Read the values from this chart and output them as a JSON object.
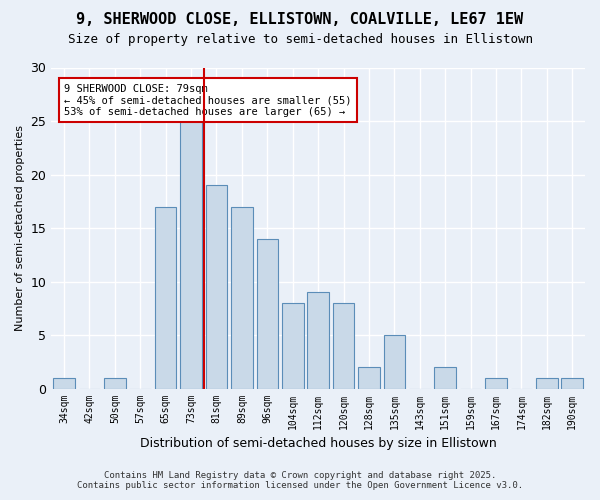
{
  "title": "9, SHERWOOD CLOSE, ELLISTOWN, COALVILLE, LE67 1EW",
  "subtitle": "Size of property relative to semi-detached houses in Ellistown",
  "xlabel": "Distribution of semi-detached houses by size in Ellistown",
  "ylabel": "Number of semi-detached properties",
  "bar_color": "#c9d9e8",
  "bar_edge_color": "#5b8db8",
  "categories": [
    "34sqm",
    "42sqm",
    "50sqm",
    "57sqm",
    "65sqm",
    "73sqm",
    "81sqm",
    "89sqm",
    "96sqm",
    "104sqm",
    "112sqm",
    "120sqm",
    "128sqm",
    "135sqm",
    "143sqm",
    "151sqm",
    "159sqm",
    "167sqm",
    "174sqm",
    "182sqm",
    "190sqm"
  ],
  "values": [
    1,
    0,
    1,
    0,
    17,
    25,
    19,
    17,
    14,
    8,
    9,
    8,
    2,
    5,
    0,
    2,
    0,
    1,
    0,
    1,
    1
  ],
  "ylim": [
    0,
    30
  ],
  "yticks": [
    0,
    5,
    10,
    15,
    20,
    25,
    30
  ],
  "annotation_text": "9 SHERWOOD CLOSE: 79sqm\n← 45% of semi-detached houses are smaller (55)\n53% of semi-detached houses are larger (65) →",
  "footer_line1": "Contains HM Land Registry data © Crown copyright and database right 2025.",
  "footer_line2": "Contains public sector information licensed under the Open Government Licence v3.0.",
  "bg_color": "#eaf0f8",
  "plot_bg_color": "#eaf0f8",
  "grid_color": "#ffffff",
  "annotation_box_color": "#ffffff",
  "annotation_box_edge": "#cc0000",
  "vline_color": "#cc0000",
  "vline_index": 5.5
}
